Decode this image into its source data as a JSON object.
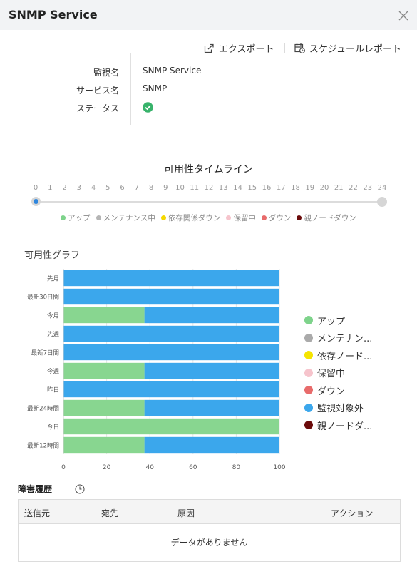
{
  "header": {
    "title": "SNMP Service"
  },
  "actions": {
    "export_label": "エクスポート",
    "separator": "|",
    "schedule_label": "スケジュールレポート"
  },
  "info": {
    "monitor_name_label": "監視名",
    "monitor_name_value": "SNMP Service",
    "service_name_label": "サービス名",
    "service_name_value": "SNMP",
    "status_label": "ステータス",
    "status_icon": "check-circle-icon"
  },
  "timeline": {
    "title": "可用性タイムライン",
    "ticks": [
      "0",
      "1",
      "2",
      "3",
      "4",
      "5",
      "6",
      "7",
      "8",
      "9",
      "10",
      "11",
      "12",
      "13",
      "14",
      "15",
      "16",
      "17",
      "18",
      "19",
      "20",
      "21",
      "22",
      "23",
      "24"
    ],
    "filled_fraction": 0.0,
    "legend": [
      {
        "label": "アップ",
        "color": "#7ed38b"
      },
      {
        "label": "メンテナンス中",
        "color": "#b5b5b5"
      },
      {
        "label": "依存関係ダウン",
        "color": "#f5d800"
      },
      {
        "label": "保留中",
        "color": "#f6c4cc"
      },
      {
        "label": "ダウン",
        "color": "#e86b6b"
      },
      {
        "label": "親ノードダウン",
        "color": "#6b0b0b"
      }
    ]
  },
  "graph": {
    "title": "可用性グラフ",
    "legend": [
      {
        "label": "アップ",
        "color": "#7ed38b"
      },
      {
        "label": "メンテナン...",
        "color": "#aaaaaa"
      },
      {
        "label": "依存ノード...",
        "color": "#f5e400"
      },
      {
        "label": "保留中",
        "color": "#f6c4cc"
      },
      {
        "label": "ダウン",
        "color": "#e86b6b"
      },
      {
        "label": "監視対象外",
        "color": "#3ba7ec"
      },
      {
        "label": "親ノードダ...",
        "color": "#6b0b0b"
      }
    ]
  },
  "chart_data": {
    "type": "bar",
    "orientation": "horizontal",
    "stacked": true,
    "categories": [
      "先月",
      "最新30日間",
      "今月",
      "先週",
      "最新7日間",
      "今週",
      "昨日",
      "最新24時間",
      "今日",
      "最新12時間"
    ],
    "series": [
      {
        "name": "アップ",
        "color": "#88d690",
        "values": [
          0,
          0,
          37.5,
          0,
          0,
          37.5,
          0,
          37.5,
          100,
          37.5
        ]
      },
      {
        "name": "監視対象外",
        "color": "#3ba7ec",
        "values": [
          100,
          100,
          62.5,
          100,
          100,
          62.5,
          100,
          62.5,
          0,
          62.5
        ]
      }
    ],
    "xlim": [
      0,
      100
    ],
    "xticks": [
      0,
      20,
      40,
      60,
      80,
      100
    ],
    "grid": true,
    "legend_position": "right"
  },
  "failure_history": {
    "title": "障害履歴",
    "columns": [
      "送信元",
      "宛先",
      "原因",
      "アクション"
    ],
    "empty_message": "データがありません"
  }
}
